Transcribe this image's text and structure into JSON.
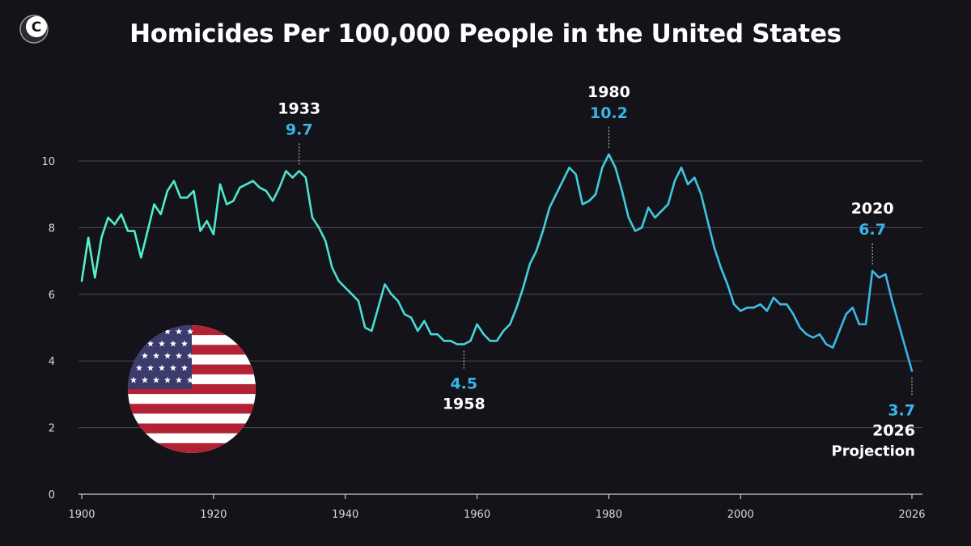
{
  "colors": {
    "background": "#141319",
    "gradient_start": "#52f2c9",
    "gradient_end": "#38b4ea",
    "value_label": "#38b6e8",
    "grid": "#4a4a52"
  },
  "chart_data": {
    "type": "line",
    "title": "Homicides Per 100,000 People in the United States",
    "xlabel": "",
    "ylabel": "",
    "xlim": [
      1900,
      2026
    ],
    "ylim": [
      0,
      10.5
    ],
    "x_ticks": [
      1900,
      1920,
      1940,
      1960,
      1980,
      2000,
      2026
    ],
    "y_ticks": [
      0,
      2,
      4,
      6,
      8,
      10
    ],
    "grid": "horizontal",
    "legend": "none",
    "series": [
      {
        "name": "Homicides per 100,000",
        "points": [
          [
            1900,
            6.4
          ],
          [
            1901,
            7.7
          ],
          [
            1902,
            6.5
          ],
          [
            1903,
            7.7
          ],
          [
            1904,
            8.3
          ],
          [
            1905,
            8.1
          ],
          [
            1906,
            8.4
          ],
          [
            1907,
            7.9
          ],
          [
            1908,
            7.9
          ],
          [
            1909,
            7.1
          ],
          [
            1910,
            7.9
          ],
          [
            1911,
            8.7
          ],
          [
            1912,
            8.4
          ],
          [
            1913,
            9.1
          ],
          [
            1914,
            9.4
          ],
          [
            1915,
            8.9
          ],
          [
            1916,
            8.9
          ],
          [
            1917,
            9.1
          ],
          [
            1918,
            7.9
          ],
          [
            1919,
            8.2
          ],
          [
            1920,
            7.8
          ],
          [
            1921,
            9.3
          ],
          [
            1922,
            8.7
          ],
          [
            1923,
            8.8
          ],
          [
            1924,
            9.2
          ],
          [
            1925,
            9.3
          ],
          [
            1926,
            9.4
          ],
          [
            1927,
            9.2
          ],
          [
            1928,
            9.1
          ],
          [
            1929,
            8.8
          ],
          [
            1930,
            9.2
          ],
          [
            1931,
            9.7
          ],
          [
            1932,
            9.5
          ],
          [
            1933,
            9.7
          ],
          [
            1934,
            9.5
          ],
          [
            1935,
            8.3
          ],
          [
            1936,
            8.0
          ],
          [
            1937,
            7.6
          ],
          [
            1938,
            6.8
          ],
          [
            1939,
            6.4
          ],
          [
            1940,
            6.2
          ],
          [
            1941,
            6.0
          ],
          [
            1942,
            5.8
          ],
          [
            1943,
            5.0
          ],
          [
            1944,
            4.9
          ],
          [
            1945,
            5.6
          ],
          [
            1946,
            6.3
          ],
          [
            1947,
            6.0
          ],
          [
            1948,
            5.8
          ],
          [
            1949,
            5.4
          ],
          [
            1950,
            5.3
          ],
          [
            1951,
            4.9
          ],
          [
            1952,
            5.2
          ],
          [
            1953,
            4.8
          ],
          [
            1954,
            4.8
          ],
          [
            1955,
            4.6
          ],
          [
            1956,
            4.6
          ],
          [
            1957,
            4.5
          ],
          [
            1958,
            4.5
          ],
          [
            1959,
            4.6
          ],
          [
            1960,
            5.1
          ],
          [
            1961,
            4.8
          ],
          [
            1962,
            4.6
          ],
          [
            1963,
            4.6
          ],
          [
            1964,
            4.9
          ],
          [
            1965,
            5.1
          ],
          [
            1966,
            5.6
          ],
          [
            1967,
            6.2
          ],
          [
            1968,
            6.9
          ],
          [
            1969,
            7.3
          ],
          [
            1970,
            7.9
          ],
          [
            1971,
            8.6
          ],
          [
            1972,
            9.0
          ],
          [
            1973,
            9.4
          ],
          [
            1974,
            9.8
          ],
          [
            1975,
            9.6
          ],
          [
            1976,
            8.7
          ],
          [
            1977,
            8.8
          ],
          [
            1978,
            9.0
          ],
          [
            1979,
            9.8
          ],
          [
            1980,
            10.2
          ],
          [
            1981,
            9.8
          ],
          [
            1982,
            9.1
          ],
          [
            1983,
            8.3
          ],
          [
            1984,
            7.9
          ],
          [
            1985,
            8.0
          ],
          [
            1986,
            8.6
          ],
          [
            1987,
            8.3
          ],
          [
            1988,
            8.5
          ],
          [
            1989,
            8.7
          ],
          [
            1990,
            9.4
          ],
          [
            1991,
            9.8
          ],
          [
            1992,
            9.3
          ],
          [
            1993,
            9.5
          ],
          [
            1994,
            9.0
          ],
          [
            1995,
            8.2
          ],
          [
            1996,
            7.4
          ],
          [
            1997,
            6.8
          ],
          [
            1998,
            6.3
          ],
          [
            1999,
            5.7
          ],
          [
            2000,
            5.5
          ],
          [
            2001,
            5.6
          ],
          [
            2002,
            5.6
          ],
          [
            2003,
            5.7
          ],
          [
            2004,
            5.5
          ],
          [
            2005,
            5.9
          ],
          [
            2006,
            5.7
          ],
          [
            2007,
            5.7
          ],
          [
            2008,
            5.4
          ],
          [
            2009,
            5.0
          ],
          [
            2010,
            4.8
          ],
          [
            2011,
            4.7
          ],
          [
            2012,
            4.8
          ],
          [
            2013,
            4.5
          ],
          [
            2014,
            4.4
          ],
          [
            2015,
            4.9
          ],
          [
            2016,
            5.4
          ],
          [
            2017,
            5.6
          ],
          [
            2018,
            5.1
          ],
          [
            2019,
            5.1
          ],
          [
            2020,
            6.7
          ],
          [
            2021,
            6.5
          ],
          [
            2022,
            6.6
          ],
          [
            2023,
            5.8
          ],
          [
            2024,
            5.1
          ],
          [
            2025,
            4.4
          ],
          [
            2026,
            3.7
          ]
        ]
      }
    ],
    "annotations": [
      {
        "x": 1933,
        "y": 9.7,
        "year_label": "1933",
        "value_label": "9.7",
        "placement": "above"
      },
      {
        "x": 1958,
        "y": 4.5,
        "year_label": "1958",
        "value_label": "4.5",
        "placement": "below"
      },
      {
        "x": 1980,
        "y": 10.2,
        "year_label": "1980",
        "value_label": "10.2",
        "placement": "above"
      },
      {
        "x": 2020,
        "y": 6.7,
        "year_label": "2020",
        "value_label": "6.7",
        "placement": "above"
      },
      {
        "x": 2026,
        "y": 3.7,
        "year_label": "2026",
        "value_label": "3.7",
        "note": "Projection",
        "placement": "below"
      }
    ]
  }
}
